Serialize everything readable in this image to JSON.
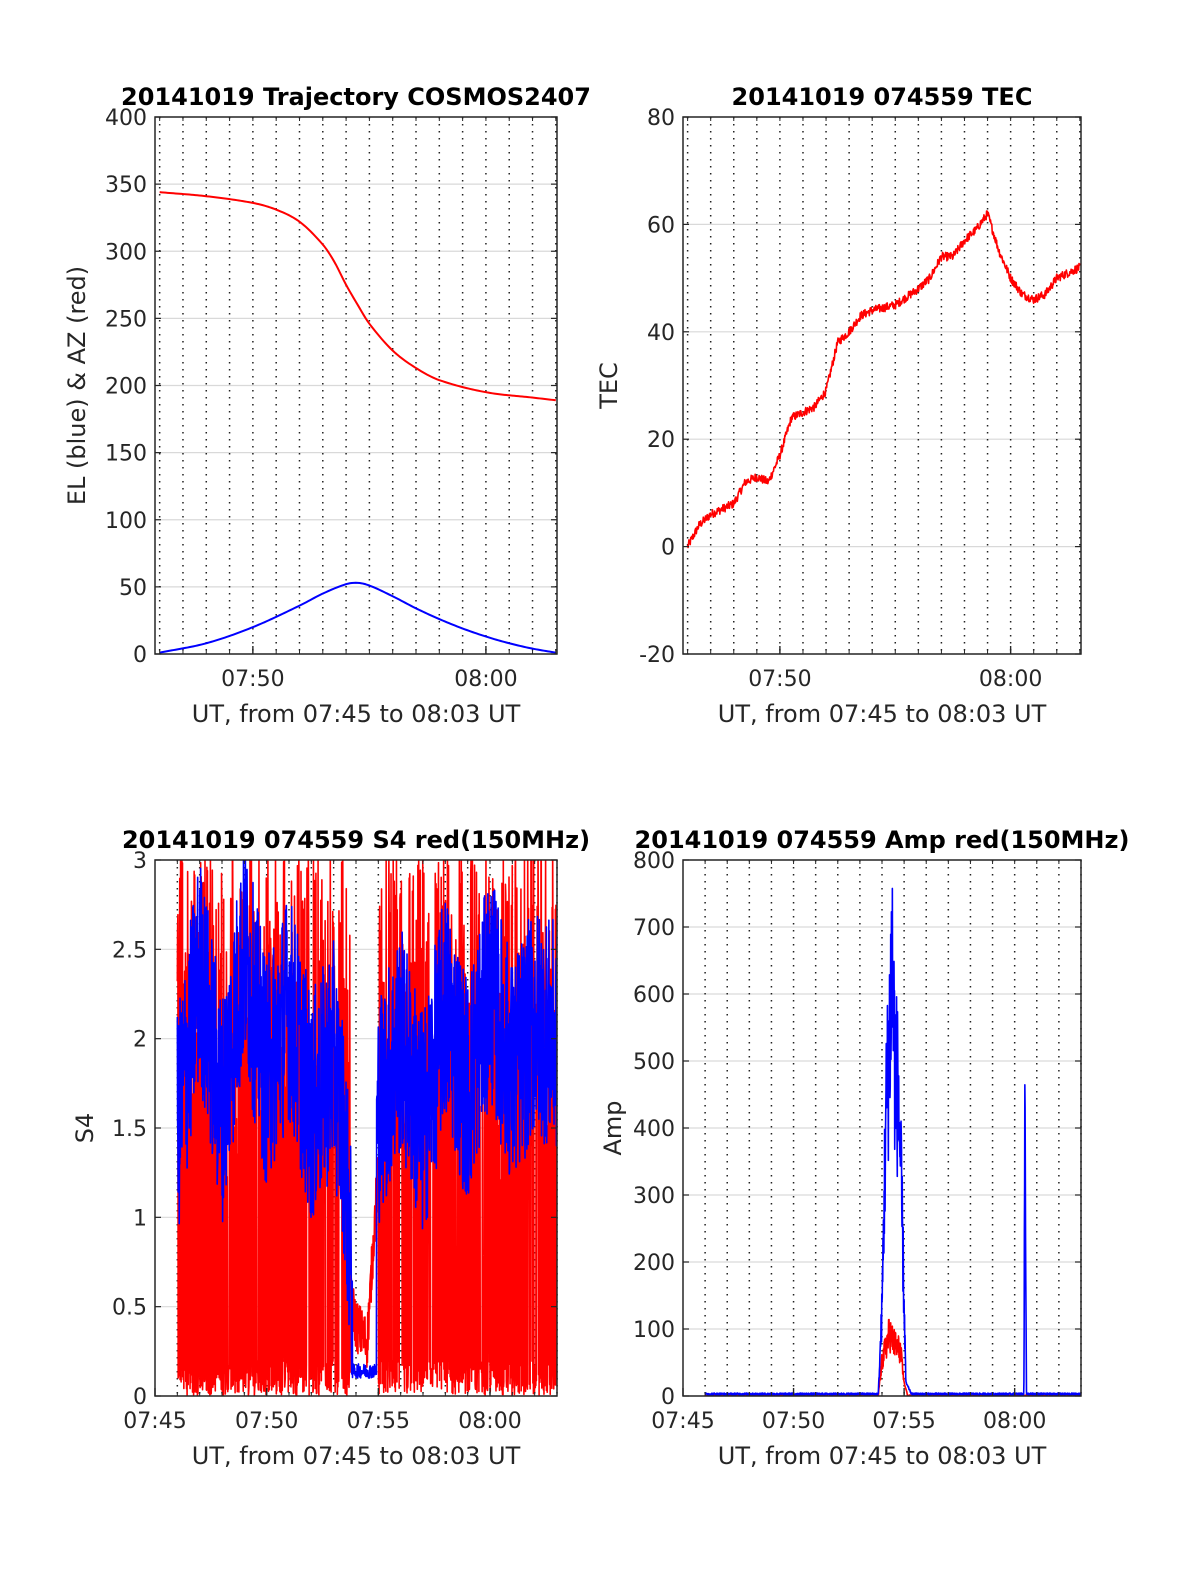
{
  "figure": {
    "colors": {
      "el_series": "#0000ff",
      "az_series": "#ff0000",
      "tec_series": "#ff0000",
      "s4_red": "#ff0000",
      "s4_blue": "#0000ff",
      "amp_red": "#ff0000",
      "amp_blue": "#0000ff",
      "grid": "#d9d9d9",
      "axes": "#262626"
    }
  },
  "chart_data": [
    {
      "id": "trajectory",
      "type": "line",
      "title": "20141019 Trajectory COSMOS2407",
      "xlabel": "UT, from 07:45 to 08:03 UT",
      "ylabel": "EL (blue) & AZ (red)",
      "xlim": [
        "07:45",
        "08:03"
      ],
      "ylim": [
        0,
        400
      ],
      "yticks": [
        "0",
        "50",
        "100",
        "150",
        "200",
        "250",
        "300",
        "350",
        "400"
      ],
      "xticks": [
        {
          "t": "07:50",
          "label": "07:50"
        },
        {
          "t": "08:00",
          "label": "08:00"
        }
      ],
      "minor_x_grid_minutes": [
        46,
        47,
        48,
        49,
        50,
        51,
        52,
        53,
        54,
        55,
        56,
        57,
        58,
        59,
        60,
        61,
        62,
        63
      ],
      "grid": "y major solid, x minor dotted",
      "series": [
        {
          "name": "AZ (red)",
          "color": "#ff0000",
          "points": [
            [
              "07:46",
              344
            ],
            [
              "07:48",
              341
            ],
            [
              "07:50",
              336
            ],
            [
              "07:51",
              331
            ],
            [
              "07:52",
              322
            ],
            [
              "07:53",
              305
            ],
            [
              "07:53:30",
              292
            ],
            [
              "07:54",
              275
            ],
            [
              "07:54:30",
              260
            ],
            [
              "07:55",
              246
            ],
            [
              "07:56",
              226
            ],
            [
              "07:57",
              213
            ],
            [
              "07:58",
              204
            ],
            [
              "08:00",
              195
            ],
            [
              "08:02",
              191
            ],
            [
              "08:03",
              189
            ]
          ]
        },
        {
          "name": "EL (blue)",
          "color": "#0000ff",
          "points": [
            [
              "07:46",
              1
            ],
            [
              "07:48",
              8
            ],
            [
              "07:50",
              20
            ],
            [
              "07:52",
              36
            ],
            [
              "07:53",
              45
            ],
            [
              "07:54",
              52
            ],
            [
              "07:54:30",
              53
            ],
            [
              "07:55",
              51
            ],
            [
              "07:56",
              43
            ],
            [
              "07:57",
              34
            ],
            [
              "07:58",
              26
            ],
            [
              "07:59",
              19
            ],
            [
              "08:00",
              13
            ],
            [
              "08:01",
              8
            ],
            [
              "08:02",
              4
            ],
            [
              "08:03",
              1
            ]
          ]
        }
      ]
    },
    {
      "id": "tec",
      "type": "line",
      "title": "20141019 074559 TEC",
      "xlabel": "UT, from 07:45 to 08:03 UT",
      "ylabel": "TEC",
      "xlim": [
        "07:45",
        "08:03"
      ],
      "ylim": [
        -20,
        80
      ],
      "yticks": [
        "-20",
        "0",
        "20",
        "40",
        "60",
        "80"
      ],
      "xticks": [
        {
          "t": "07:50",
          "label": "07:50"
        },
        {
          "t": "08:00",
          "label": "08:00"
        }
      ],
      "minor_x_grid_minutes": [
        46,
        47,
        48,
        49,
        50,
        51,
        52,
        53,
        54,
        55,
        56,
        57,
        58,
        59,
        60,
        61,
        62,
        63
      ],
      "series": [
        {
          "name": "TEC",
          "color": "#ff0000",
          "points": [
            [
              "07:46",
              0
            ],
            [
              "07:46:30",
              4
            ],
            [
              "07:47",
              6
            ],
            [
              "07:47:30",
              7
            ],
            [
              "07:48",
              8
            ],
            [
              "07:48:30",
              12
            ],
            [
              "07:49",
              13
            ],
            [
              "07:49:30",
              12
            ],
            [
              "07:50",
              17
            ],
            [
              "07:50:30",
              24
            ],
            [
              "07:51",
              25
            ],
            [
              "07:51:30",
              26
            ],
            [
              "07:52",
              29
            ],
            [
              "07:52:30",
              38
            ],
            [
              "07:53",
              40
            ],
            [
              "07:53:30",
              43
            ],
            [
              "07:54",
              44
            ],
            [
              "07:55",
              45
            ],
            [
              "07:56",
              48
            ],
            [
              "07:56:30",
              50
            ],
            [
              "07:57",
              54
            ],
            [
              "07:57:30",
              54
            ],
            [
              "07:58",
              57
            ],
            [
              "07:58:30",
              59
            ],
            [
              "07:59",
              62
            ],
            [
              "07:59:30",
              55
            ],
            [
              "08:00",
              50
            ],
            [
              "08:00:30",
              47
            ],
            [
              "08:01",
              46
            ],
            [
              "08:01:30",
              47
            ],
            [
              "08:02",
              50
            ],
            [
              "08:02:30",
              51
            ],
            [
              "08:03",
              52
            ]
          ]
        }
      ]
    },
    {
      "id": "s4",
      "type": "line",
      "title": "20141019 074559 S4 red(150MHz)",
      "xlabel": "UT, from 07:45 to 08:03 UT",
      "ylabel": "S4",
      "xlim": [
        "07:45",
        "08:03"
      ],
      "ylim": [
        0,
        3
      ],
      "yticks": [
        "0",
        "0.5",
        "1",
        "1.5",
        "2",
        "2.5",
        "3"
      ],
      "xticks": [
        {
          "t": "07:45",
          "label": "07:45"
        },
        {
          "t": "07:50",
          "label": "07:50"
        },
        {
          "t": "07:55",
          "label": "07:55"
        },
        {
          "t": "08:00",
          "label": "08:00"
        }
      ],
      "minor_x_grid_minutes": [
        46,
        47,
        48,
        49,
        50,
        51,
        52,
        53,
        54,
        55,
        56,
        57,
        58,
        59,
        60,
        61,
        62,
        63
      ],
      "series": [
        {
          "name": "S4 red",
          "color": "#ff0000",
          "note_range": "noisy 0 to 3 from 07:46 to 08:03, dip to ~0.3 near 07:54:30",
          "points": [
            [
              "07:46",
              1.4
            ],
            [
              "07:47",
              0.3
            ],
            [
              "07:48",
              2.8
            ],
            [
              "07:49",
              0.1
            ],
            [
              "07:50",
              2.2
            ],
            [
              "07:51",
              0.5
            ],
            [
              "07:52",
              1.6
            ],
            [
              "07:53",
              1.0
            ],
            [
              "07:54",
              0.4
            ],
            [
              "07:54:30",
              0.3
            ],
            [
              "07:55",
              1.3
            ],
            [
              "07:56",
              2.0
            ],
            [
              "07:57",
              0.8
            ],
            [
              "07:58",
              1.9
            ],
            [
              "07:59",
              0.2
            ],
            [
              "08:00",
              2.4
            ],
            [
              "08:01",
              0.6
            ],
            [
              "08:02",
              2.6
            ],
            [
              "08:03",
              1.4
            ]
          ]
        },
        {
          "name": "S4 blue",
          "color": "#0000ff",
          "note_range": "noisy 1.2 to 3, dip to ~0.1 near 07:54:30",
          "points": [
            [
              "07:46",
              1.5
            ],
            [
              "07:47",
              2.4
            ],
            [
              "07:48",
              1.6
            ],
            [
              "07:49",
              2.5
            ],
            [
              "07:50",
              1.8
            ],
            [
              "07:51",
              2.2
            ],
            [
              "07:52",
              1.6
            ],
            [
              "07:53",
              1.9
            ],
            [
              "07:53:30",
              1.4
            ],
            [
              "07:54",
              0.2
            ],
            [
              "07:54:30",
              0.1
            ],
            [
              "07:55",
              1.6
            ],
            [
              "07:56",
              2.0
            ],
            [
              "07:57",
              1.5
            ],
            [
              "07:58",
              2.2
            ],
            [
              "07:59",
              1.7
            ],
            [
              "08:00",
              2.3
            ],
            [
              "08:01",
              1.8
            ],
            [
              "08:02",
              2.1
            ],
            [
              "08:03",
              2.0
            ]
          ]
        }
      ]
    },
    {
      "id": "amp",
      "type": "line",
      "title": "20141019 074559 Amp red(150MHz)",
      "xlabel": "UT, from 07:45 to 08:03 UT",
      "ylabel": "Amp",
      "xlim": [
        "07:45",
        "08:03"
      ],
      "ylim": [
        0,
        800
      ],
      "yticks": [
        "0",
        "100",
        "200",
        "300",
        "400",
        "500",
        "600",
        "700",
        "800"
      ],
      "xticks": [
        {
          "t": "07:45",
          "label": "07:45"
        },
        {
          "t": "07:50",
          "label": "07:50"
        },
        {
          "t": "07:55",
          "label": "07:55"
        },
        {
          "t": "08:00",
          "label": "08:00"
        }
      ],
      "minor_x_grid_minutes": [
        46,
        47,
        48,
        49,
        50,
        51,
        52,
        53,
        54,
        55,
        56,
        57,
        58,
        59,
        60,
        61,
        62,
        63
      ],
      "series": [
        {
          "name": "Amp red",
          "color": "#ff0000",
          "points": [
            [
              "07:46",
              0
            ],
            [
              "07:53:50",
              0
            ],
            [
              "07:54",
              60
            ],
            [
              "07:54:20",
              110
            ],
            [
              "07:54:35",
              90
            ],
            [
              "07:54:50",
              80
            ],
            [
              "07:55",
              20
            ],
            [
              "07:55:10",
              0
            ],
            [
              "08:03",
              0
            ]
          ]
        },
        {
          "name": "Amp blue",
          "color": "#0000ff",
          "points": [
            [
              "07:46",
              3
            ],
            [
              "07:53:50",
              3
            ],
            [
              "07:54",
              150
            ],
            [
              "07:54:10",
              480
            ],
            [
              "07:54:20",
              620
            ],
            [
              "07:54:27",
              780
            ],
            [
              "07:54:35",
              580
            ],
            [
              "07:54:45",
              520
            ],
            [
              "07:54:55",
              300
            ],
            [
              "07:55:05",
              20
            ],
            [
              "07:55:20",
              3
            ],
            [
              "08:00:25",
              3
            ],
            [
              "08:00:28",
              570
            ],
            [
              "08:00:32",
              3
            ],
            [
              "08:03",
              3
            ]
          ]
        }
      ]
    }
  ]
}
